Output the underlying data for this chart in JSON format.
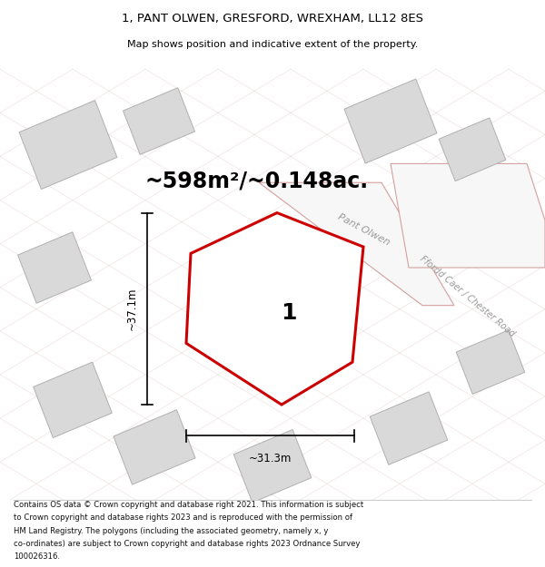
{
  "title_line1": "1, PANT OLWEN, GRESFORD, WREXHAM, LL12 8ES",
  "title_line2": "Map shows position and indicative extent of the property.",
  "area_text": "~598m²/~0.148ac.",
  "label_number": "1",
  "dim_width": "~31.3m",
  "dim_height": "~37.1m",
  "road_label1": "Pant Olwen",
  "road_label2": "Ffordd Caer / Chester Road",
  "footer_text": "Contains OS data © Crown copyright and database right 2021. This information is subject to Crown copyright and database rights 2023 and is reproduced with the permission of HM Land Registry. The polygons (including the associated geometry, namely x, y co-ordinates) are subject to Crown copyright and database rights 2023 Ordnance Survey 100026316.",
  "bg_color": "#ffffff",
  "map_bg": "#f7f7f7",
  "polygon_color": "#cc0000",
  "building_fill": "#d9d9d9",
  "building_edge": "#b0b0b0",
  "road_pink": "#f0d0d0",
  "road_edge": "#d4a0a0",
  "dim_line_color": "#000000",
  "label_color": "#000000",
  "road_text_color": "#999999"
}
